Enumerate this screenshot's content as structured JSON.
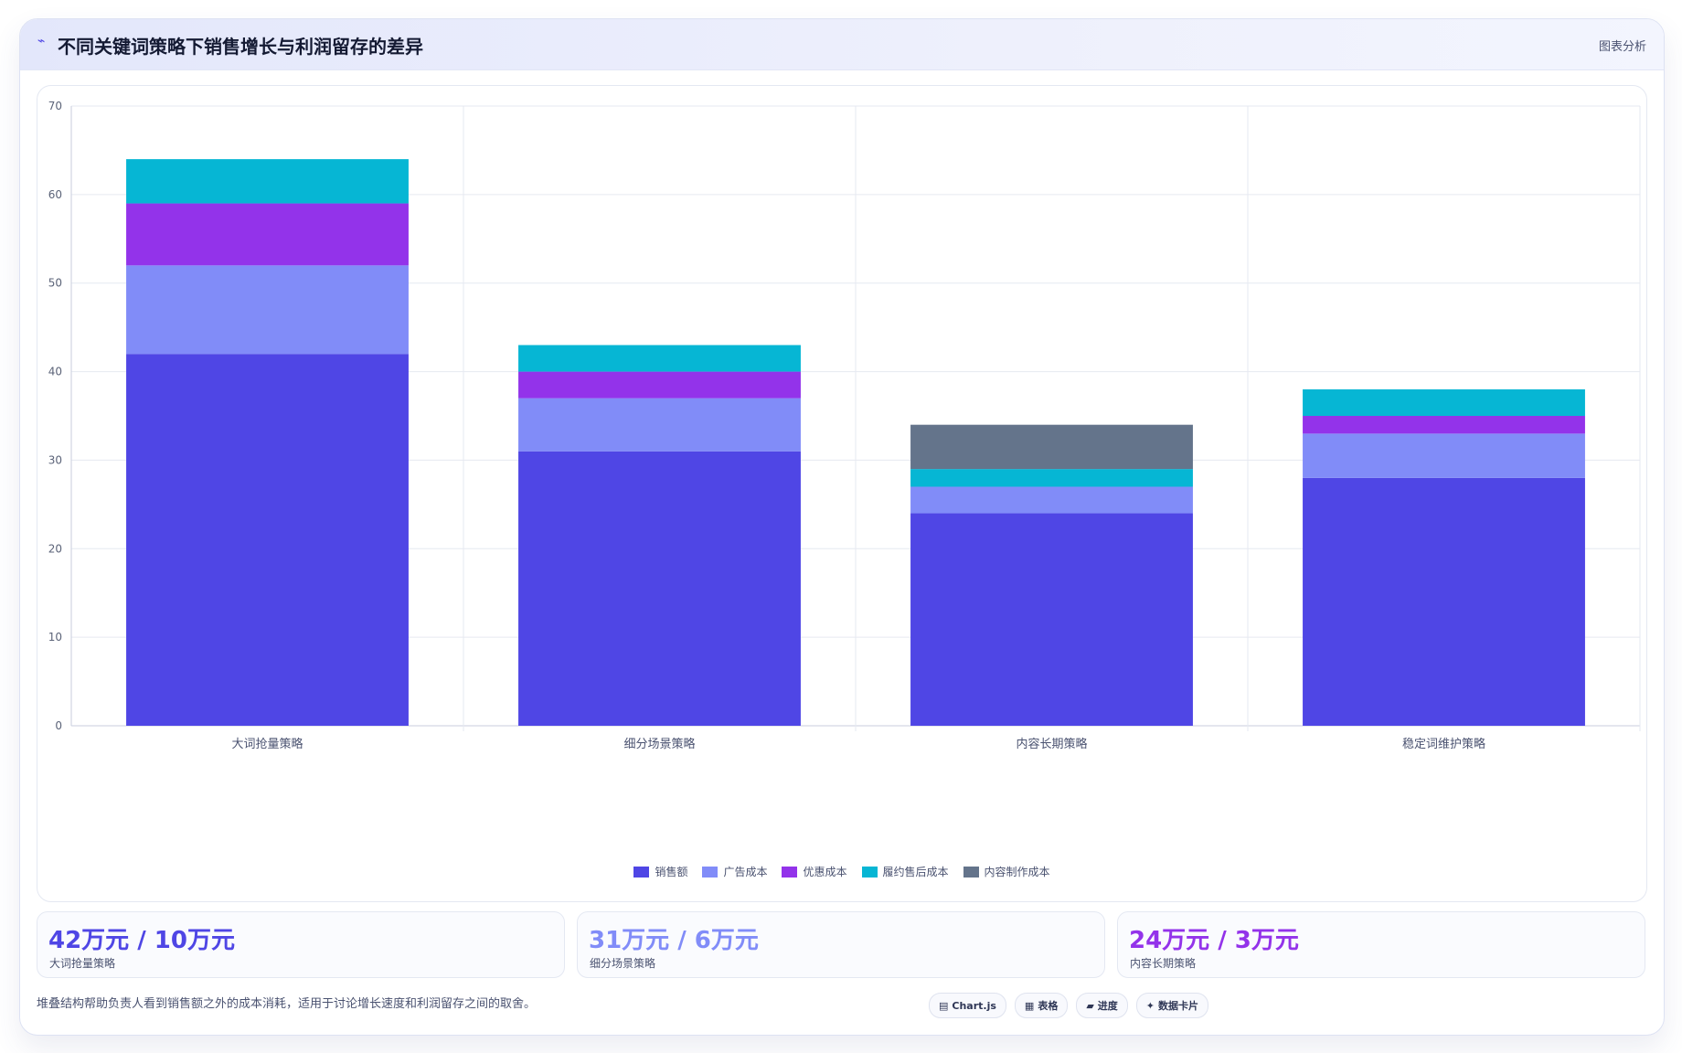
{
  "header": {
    "icon": "trend-icon",
    "title": "不同关键词策略下销售增长与利润留存的差异",
    "tag": "图表分析"
  },
  "colors": {
    "sales": "#4f46e5",
    "ad_cost": "#818cf8",
    "discount_cost": "#9333ea",
    "fulfillment_cost": "#06b6d4",
    "content_cost": "#64748b"
  },
  "chart_data": {
    "type": "bar",
    "stacked": true,
    "categories": [
      "大词抢量策略",
      "细分场景策略",
      "内容长期策略",
      "稳定词维护策略"
    ],
    "series": [
      {
        "name": "销售额",
        "color": "#4f46e5",
        "values": [
          42,
          31,
          24,
          28
        ]
      },
      {
        "name": "广告成本",
        "color": "#818cf8",
        "values": [
          10,
          6,
          3,
          5
        ]
      },
      {
        "name": "优惠成本",
        "color": "#9333ea",
        "values": [
          7,
          3,
          0,
          2
        ]
      },
      {
        "name": "履约售后成本",
        "color": "#06b6d4",
        "values": [
          5,
          3,
          2,
          3
        ]
      },
      {
        "name": "内容制作成本",
        "color": "#64748b",
        "values": [
          0,
          0,
          5,
          0
        ]
      }
    ],
    "ylim": [
      0,
      70
    ],
    "yticks": [
      0,
      10,
      20,
      30,
      40,
      50,
      60,
      70
    ],
    "grid": true,
    "legend_position": "bottom"
  },
  "stats": [
    {
      "value": "42万元 / 10万元",
      "label": "大词抢量策略",
      "color": "#4f46e5"
    },
    {
      "value": "31万元 / 6万元",
      "label": "细分场景策略",
      "color": "#818cf8"
    },
    {
      "value": "24万元 / 3万元",
      "label": "内容长期策略",
      "color": "#9333ea"
    }
  ],
  "footnote": "堆叠结构帮助负责人看到销售额之外的成本消耗，适用于讨论增长速度和利润留存之间的取舍。",
  "pills": [
    {
      "icon": "▤",
      "label": "Chart.js"
    },
    {
      "icon": "▦",
      "label": "表格"
    },
    {
      "icon": "▰",
      "label": "进度"
    },
    {
      "icon": "✦",
      "label": "数据卡片"
    }
  ]
}
